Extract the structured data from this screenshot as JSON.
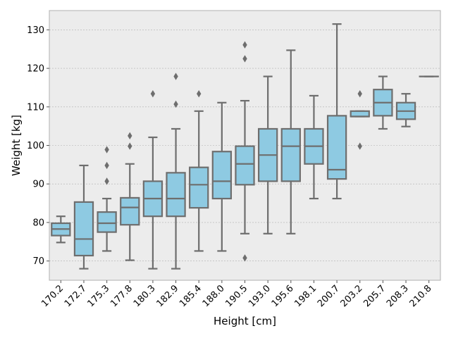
{
  "chart_data": {
    "type": "box",
    "xlabel": "Height [cm]",
    "ylabel": "Weight [kg]",
    "ylim": [
      65,
      135
    ],
    "yticks": [
      70,
      80,
      90,
      100,
      110,
      120,
      130
    ],
    "grid": true,
    "box_color": "#8ecae2",
    "line_color": "#6e6e6e",
    "background": "#ececec",
    "categories": [
      "170.2",
      "172.7",
      "175.3",
      "177.8",
      "180.3",
      "182.9",
      "185.4",
      "188.0",
      "190.5",
      "193.0",
      "195.6",
      "198.1",
      "200.7",
      "203.2",
      "205.7",
      "208.3",
      "210.8"
    ],
    "boxes": [
      {
        "whislo": 74.8,
        "q1": 76.6,
        "med": 78.3,
        "q3": 79.8,
        "whishi": 81.6,
        "fliers": []
      },
      {
        "whislo": 68.0,
        "q1": 71.4,
        "med": 75.7,
        "q3": 85.3,
        "whishi": 94.8,
        "fliers": []
      },
      {
        "whislo": 72.6,
        "q1": 77.5,
        "med": 79.8,
        "q3": 82.7,
        "whishi": 86.2,
        "fliers": [
          90.7,
          94.8,
          98.9
        ]
      },
      {
        "whislo": 70.2,
        "q1": 79.4,
        "med": 83.9,
        "q3": 86.4,
        "whishi": 95.2,
        "fliers": [
          99.8,
          102.5
        ]
      },
      {
        "whislo": 68.0,
        "q1": 81.6,
        "med": 86.2,
        "q3": 90.7,
        "whishi": 102.1,
        "fliers": [
          113.4
        ]
      },
      {
        "whislo": 68.0,
        "q1": 81.6,
        "med": 86.2,
        "q3": 92.9,
        "whishi": 104.3,
        "fliers": [
          110.7,
          117.9
        ]
      },
      {
        "whislo": 72.6,
        "q1": 83.8,
        "med": 89.8,
        "q3": 94.3,
        "whishi": 108.9,
        "fliers": [
          113.4
        ]
      },
      {
        "whislo": 72.6,
        "q1": 86.2,
        "med": 90.7,
        "q3": 98.4,
        "whishi": 111.1,
        "fliers": []
      },
      {
        "whislo": 77.1,
        "q1": 89.8,
        "med": 95.2,
        "q3": 99.8,
        "whishi": 111.6,
        "fliers": [
          70.8,
          122.5,
          126.1
        ]
      },
      {
        "whislo": 77.1,
        "q1": 90.7,
        "med": 97.5,
        "q3": 104.3,
        "whishi": 117.9,
        "fliers": []
      },
      {
        "whislo": 77.1,
        "q1": 90.7,
        "med": 99.8,
        "q3": 104.3,
        "whishi": 124.7,
        "fliers": []
      },
      {
        "whislo": 86.2,
        "q1": 95.2,
        "med": 99.8,
        "q3": 104.3,
        "whishi": 112.9,
        "fliers": []
      },
      {
        "whislo": 86.2,
        "q1": 91.3,
        "med": 93.7,
        "q3": 107.7,
        "whishi": 131.5,
        "fliers": []
      },
      {
        "whislo": 107.5,
        "q1": 107.5,
        "med": 107.5,
        "q3": 108.9,
        "whishi": 108.9,
        "fliers": [
          99.8,
          113.4
        ]
      },
      {
        "whislo": 104.3,
        "q1": 107.7,
        "med": 111.1,
        "q3": 114.5,
        "whishi": 117.9,
        "fliers": []
      },
      {
        "whislo": 104.9,
        "q1": 106.8,
        "med": 108.9,
        "q3": 111.1,
        "whishi": 113.4,
        "fliers": []
      },
      {
        "whislo": 117.9,
        "q1": 117.9,
        "med": 117.9,
        "q3": 117.9,
        "whishi": 117.9,
        "fliers": []
      }
    ]
  }
}
